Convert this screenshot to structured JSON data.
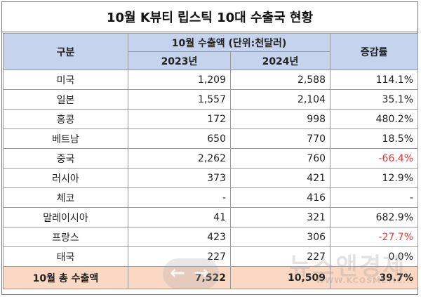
{
  "title": "10월 K뷰티 립스틱 10대 수출국 현황",
  "header": {
    "col_category": "구분",
    "col_export_group": "10월 수출액 (단위:천달러)",
    "col_2023": "2023년",
    "col_2024": "2024년",
    "col_rate": "증감률"
  },
  "rows": [
    {
      "country": "미국",
      "y2023": "1,209",
      "y2024": "2,588",
      "rate": "114.1%",
      "negative": false
    },
    {
      "country": "일본",
      "y2023": "1,557",
      "y2024": "2,104",
      "rate": "35.1%",
      "negative": false
    },
    {
      "country": "홍콩",
      "y2023": "172",
      "y2024": "998",
      "rate": "480.2%",
      "negative": false
    },
    {
      "country": "베트남",
      "y2023": "650",
      "y2024": "770",
      "rate": "18.5%",
      "negative": false
    },
    {
      "country": "중국",
      "y2023": "2,262",
      "y2024": "760",
      "rate": "-66.4%",
      "negative": true
    },
    {
      "country": "러시아",
      "y2023": "373",
      "y2024": "421",
      "rate": "12.9%",
      "negative": false
    },
    {
      "country": "체코",
      "y2023": "-",
      "y2024": "416",
      "rate": "-",
      "negative": false
    },
    {
      "country": "말레이시아",
      "y2023": "41",
      "y2024": "321",
      "rate": "682.9%",
      "negative": false
    },
    {
      "country": "프랑스",
      "y2023": "423",
      "y2024": "306",
      "rate": "-27.7%",
      "negative": true
    },
    {
      "country": "태국",
      "y2023": "227",
      "y2024": "227",
      "rate": "0.0%",
      "negative": false
    }
  ],
  "total": {
    "label": "10월 총 수출액",
    "y2023": "7,522",
    "y2024": "10,509",
    "rate": "39.7%"
  },
  "watermark": {
    "text": "뉴스앤경제",
    "url": "WWW.KCOSMETIC..."
  },
  "colors": {
    "header_bg": "#c5d3ec",
    "total_bg": "#fbd8c3",
    "negative": "#e8393a"
  }
}
